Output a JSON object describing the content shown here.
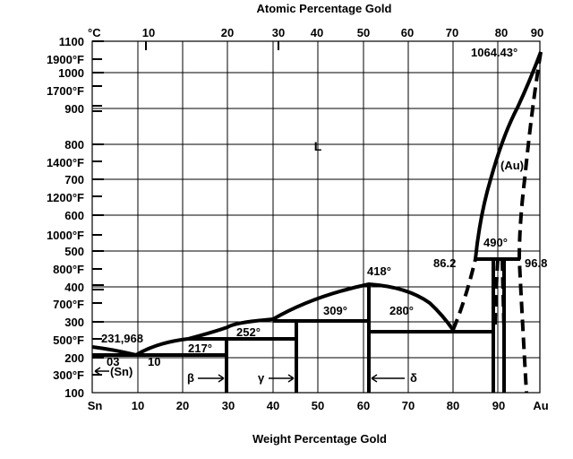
{
  "title": "Atomic Percentage Gold",
  "xlabel": "Weight Percentage Gold",
  "axes": {
    "celsius_unit": "°C",
    "top_ticks": [
      "10",
      "20",
      "30",
      "40",
      "50",
      "60",
      "70",
      "80",
      "90"
    ],
    "bottom_ticks": [
      "Sn",
      "10",
      "20",
      "30",
      "40",
      "50",
      "60",
      "70",
      "80",
      "90",
      "Au"
    ],
    "celsius_ticks": [
      "1100",
      "1000",
      "900",
      "800",
      "700",
      "600",
      "500",
      "400",
      "300",
      "200",
      "100"
    ],
    "fahrenheit_ticks": [
      "1900°F",
      "1700°F",
      "1400°F",
      "1200°F",
      "1000°F",
      "800°F",
      "700°F",
      "500°F",
      "300°F"
    ]
  },
  "labels": {
    "liquid": "L",
    "sn_melt": "231,968",
    "eut_217": "217°",
    "per_252": "252°",
    "per_309": "309°",
    "max_418": "418°",
    "eut_280": "280°",
    "au_melt": "1064.43°",
    "au_phase": "(Au)",
    "t_490": "490°",
    "c_862": "86.2",
    "c_968": "96.8",
    "sn_phase": "(Sn)",
    "c_03": "03",
    "c_10": "10",
    "beta": "β",
    "gamma": "γ",
    "delta": "δ"
  },
  "colors": {
    "ink": "#000000",
    "background": "#ffffff"
  }
}
